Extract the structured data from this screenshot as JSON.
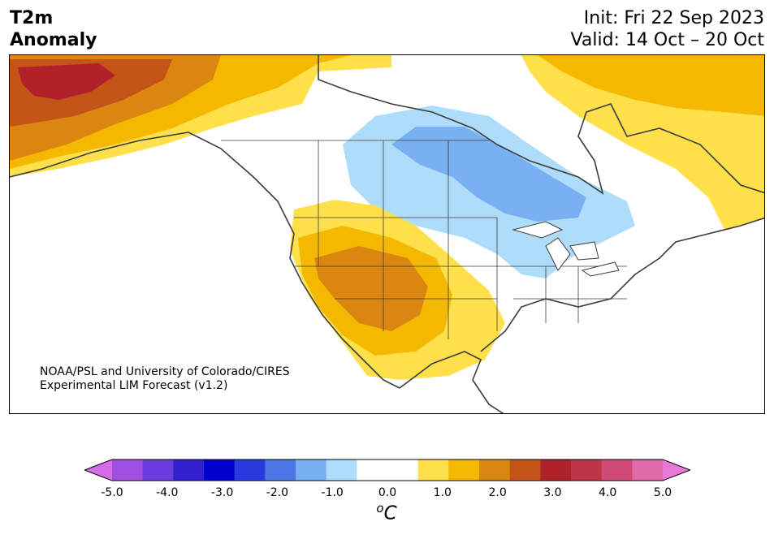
{
  "title": {
    "variable_line1": "T2m",
    "variable_line2": "Anomaly",
    "init": "Init: Fri 22 Sep 2023",
    "valid": "Valid: 14 Oct – 20 Oct"
  },
  "credit": {
    "line1": "NOAA/PSL and University of Colorado/CIRES",
    "line2": "Experimental LIM Forecast (v1.2)"
  },
  "colorbar": {
    "unit": "°C",
    "unit_sup": "o",
    "unit_letter": "C",
    "min": -5.0,
    "max": 5.0,
    "extend": "both",
    "tick_labels": [
      "-5.0",
      "-4.0",
      "-3.0",
      "-2.0",
      "-1.0",
      "0.0",
      "1.0",
      "2.0",
      "3.0",
      "4.0",
      "5.0"
    ],
    "colors": [
      "#d36ee6",
      "#a050e0",
      "#6a3ce0",
      "#3520d0",
      "#0000cf",
      "#2a3adf",
      "#4d76e6",
      "#78b0f2",
      "#aedcfb",
      "#ffffff",
      "#ffffff",
      "#ffe04a",
      "#f4b800",
      "#dc8612",
      "#c45418",
      "#b0212a",
      "#c03448",
      "#d04a78",
      "#e06aa8",
      "#e67ad6"
    ]
  },
  "map": {
    "region": "North America",
    "anomaly_colors": {
      "strong_warm": "#b0212a",
      "warm_3": "#c45418",
      "warm_2": "#dc8612",
      "warm_1": "#f4b800",
      "warm_05": "#ffe04a",
      "cool_05": "#aedcfb",
      "cool_1": "#78b0f2"
    }
  }
}
